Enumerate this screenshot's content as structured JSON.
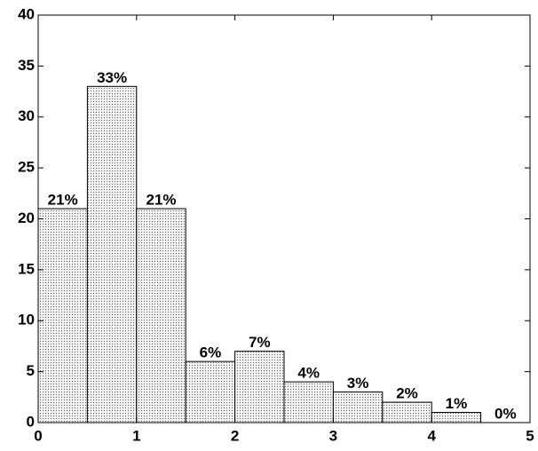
{
  "chart_data": {
    "type": "histogram",
    "bins": [
      0,
      0.5,
      1,
      1.5,
      2,
      2.5,
      3,
      3.5,
      4,
      4.5,
      5
    ],
    "values": [
      21,
      33,
      21,
      6,
      7,
      4,
      3,
      2,
      1,
      0
    ],
    "value_labels": [
      "21%",
      "33%",
      "21%",
      "6%",
      "7%",
      "4%",
      "3%",
      "2%",
      "1%",
      "0%"
    ],
    "color": "#d9d9d9",
    "xlim": [
      0,
      5
    ],
    "xticks": [
      0,
      1,
      2,
      3,
      4,
      5
    ],
    "ylim": [
      0,
      40
    ],
    "yticks": [
      0,
      5,
      10,
      15,
      20,
      25,
      30,
      35,
      40
    ],
    "grid": false
  }
}
